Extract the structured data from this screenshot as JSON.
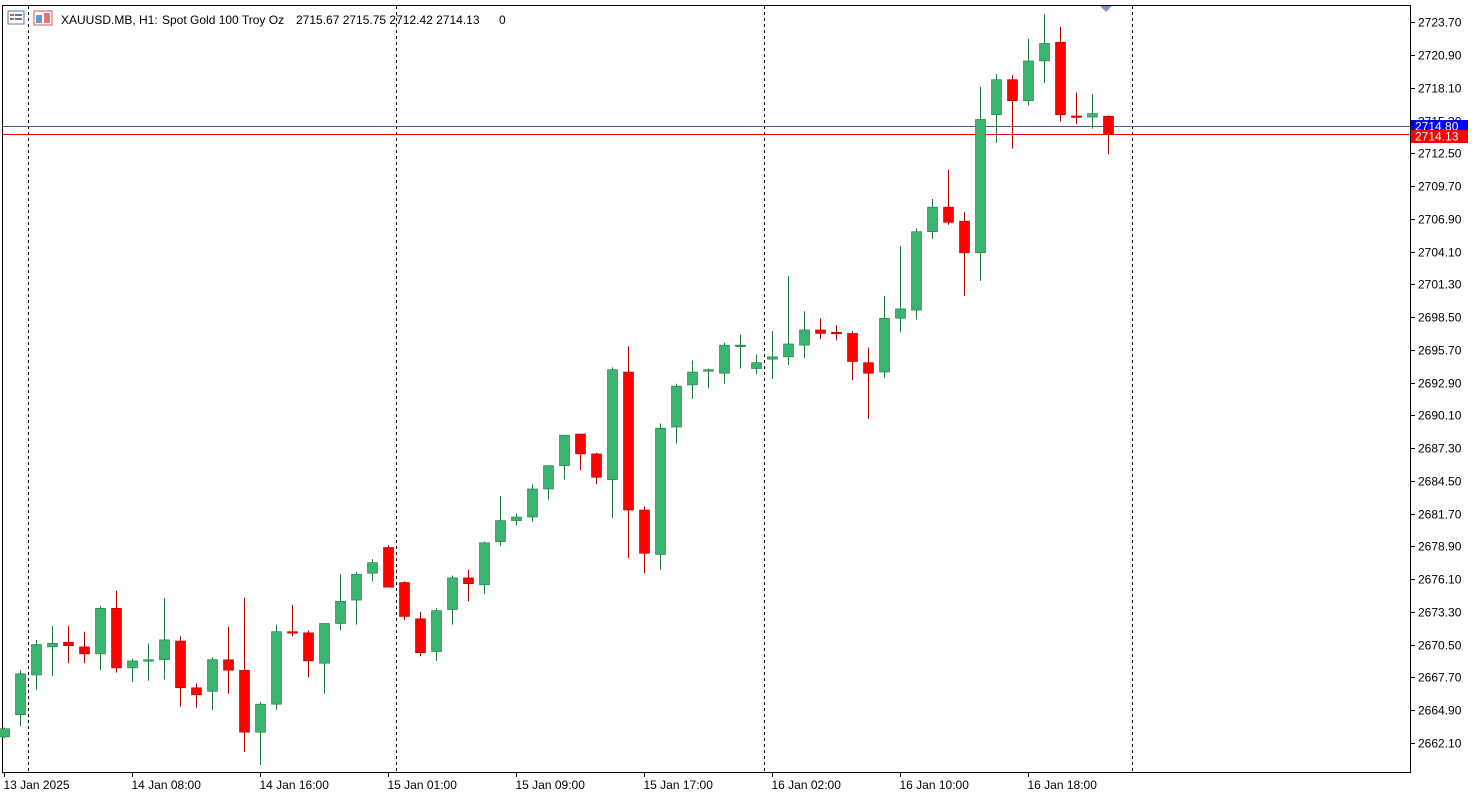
{
  "header": {
    "symbol": "XAUUSD.MB, H1:",
    "description": "Spot Gold 100 Troy Oz",
    "ohlc": "2715.67 2715.75 2712.42 2714.13",
    "volume": "0"
  },
  "colors": {
    "bull": "#3cb371",
    "bear": "#ff0000",
    "wick_bull": "#1e7b3a",
    "wick_bear": "#b00000",
    "grid": "#000000",
    "bid_line": "#1c1cff",
    "ask_line": "#ff0000",
    "bid_tag": "#0000ff",
    "ask_tag": "#ff0000"
  },
  "icons": [
    "chart-list-icon",
    "chart-window-icon"
  ],
  "chart_data": {
    "type": "candlestick",
    "y_ticks": [
      "2723.70",
      "2720.90",
      "2718.10",
      "2715.30",
      "2712.50",
      "2709.70",
      "2706.90",
      "2704.10",
      "2701.30",
      "2698.50",
      "2695.70",
      "2692.90",
      "2690.10",
      "2687.30",
      "2684.50",
      "2681.70",
      "2678.90",
      "2676.10",
      "2673.30",
      "2670.50",
      "2667.70",
      "2664.90",
      "2662.10"
    ],
    "ylim": [
      2659.6,
      2725.1
    ],
    "x_labels": [
      {
        "label": "13 Jan 2025",
        "index": 0
      },
      {
        "label": "14 Jan 08:00",
        "index": 8
      },
      {
        "label": "14 Jan 16:00",
        "index": 16
      },
      {
        "label": "15 Jan 01:00",
        "index": 24
      },
      {
        "label": "15 Jan 09:00",
        "index": 32
      },
      {
        "label": "15 Jan 17:00",
        "index": 40
      },
      {
        "label": "16 Jan 02:00",
        "index": 48
      },
      {
        "label": "16 Jan 10:00",
        "index": 56
      },
      {
        "label": "16 Jan 18:00",
        "index": 64
      }
    ],
    "separators": [
      1,
      24,
      47,
      70
    ],
    "bid_price": 2714.8,
    "bid_label": "2714.80",
    "ask_price": 2714.13,
    "ask_label": "2714.13",
    "candles": [
      [
        2662.6,
        2663.4,
        2662.5,
        2663.3
      ],
      [
        2664.5,
        2668.3,
        2663.5,
        2668.0
      ],
      [
        2667.9,
        2670.9,
        2666.6,
        2670.5
      ],
      [
        2670.3,
        2672.1,
        2667.8,
        2670.6
      ],
      [
        2670.7,
        2672.1,
        2668.9,
        2670.4
      ],
      [
        2670.3,
        2671.6,
        2668.9,
        2669.7
      ],
      [
        2669.7,
        2673.8,
        2668.3,
        2673.6
      ],
      [
        2673.6,
        2675.1,
        2668.1,
        2668.5
      ],
      [
        2668.5,
        2669.3,
        2667.3,
        2669.1
      ],
      [
        2669.1,
        2670.6,
        2667.4,
        2669.2
      ],
      [
        2669.2,
        2674.5,
        2667.5,
        2670.9
      ],
      [
        2670.8,
        2671.2,
        2665.2,
        2666.8
      ],
      [
        2666.8,
        2667.2,
        2665.1,
        2666.2
      ],
      [
        2666.5,
        2669.4,
        2664.9,
        2669.2
      ],
      [
        2669.2,
        2672.0,
        2666.3,
        2668.3
      ],
      [
        2668.3,
        2674.5,
        2661.3,
        2663.0
      ],
      [
        2663.0,
        2665.6,
        2660.2,
        2665.4
      ],
      [
        2665.4,
        2672.2,
        2664.9,
        2671.6
      ],
      [
        2671.6,
        2673.9,
        2671.2,
        2671.5
      ],
      [
        2671.5,
        2671.7,
        2667.7,
        2669.1
      ],
      [
        2668.9,
        2672.2,
        2666.3,
        2672.3
      ],
      [
        2672.3,
        2676.5,
        2671.7,
        2674.2
      ],
      [
        2674.3,
        2676.7,
        2672.2,
        2676.5
      ],
      [
        2676.6,
        2677.8,
        2675.9,
        2677.5
      ],
      [
        2678.8,
        2679.0,
        2675.4,
        2675.4
      ],
      [
        2675.8,
        2675.9,
        2672.6,
        2672.9
      ],
      [
        2672.7,
        2673.3,
        2669.5,
        2669.8
      ],
      [
        2669.9,
        2673.6,
        2669.1,
        2673.4
      ],
      [
        2673.5,
        2676.4,
        2672.2,
        2676.2
      ],
      [
        2676.2,
        2676.9,
        2674.2,
        2675.7
      ],
      [
        2675.6,
        2679.3,
        2674.8,
        2679.2
      ],
      [
        2679.3,
        2683.2,
        2678.9,
        2681.1
      ],
      [
        2681.1,
        2681.7,
        2680.7,
        2681.4
      ],
      [
        2681.4,
        2684.2,
        2681.0,
        2683.8
      ],
      [
        2683.8,
        2685.7,
        2682.9,
        2685.8
      ],
      [
        2685.8,
        2688.4,
        2684.6,
        2688.4
      ],
      [
        2688.5,
        2688.4,
        2685.4,
        2686.8
      ],
      [
        2686.8,
        2686.9,
        2684.2,
        2684.8
      ],
      [
        2684.6,
        2694.2,
        2681.3,
        2694.0
      ],
      [
        2693.8,
        2696.0,
        2677.9,
        2682.0
      ],
      [
        2682.0,
        2682.3,
        2676.6,
        2678.3
      ],
      [
        2678.2,
        2689.4,
        2676.9,
        2689.0
      ],
      [
        2689.1,
        2692.8,
        2687.7,
        2692.6
      ],
      [
        2692.7,
        2694.8,
        2691.5,
        2693.8
      ],
      [
        2693.9,
        2694.1,
        2692.4,
        2694.0
      ],
      [
        2693.7,
        2696.3,
        2692.8,
        2696.1
      ],
      [
        2696.0,
        2697.0,
        2694.1,
        2696.1
      ],
      [
        2694.1,
        2695.3,
        2693.6,
        2694.6
      ],
      [
        2694.9,
        2697.3,
        2693.2,
        2695.1
      ],
      [
        2695.1,
        2702.0,
        2694.4,
        2696.2
      ],
      [
        2696.1,
        2699.0,
        2695.0,
        2697.4
      ],
      [
        2697.4,
        2698.4,
        2696.6,
        2697.1
      ],
      [
        2697.2,
        2697.8,
        2696.5,
        2697.1
      ],
      [
        2697.1,
        2697.3,
        2693.1,
        2694.7
      ],
      [
        2694.6,
        2695.9,
        2689.8,
        2693.7
      ],
      [
        2693.8,
        2700.3,
        2693.3,
        2698.4
      ],
      [
        2698.4,
        2704.6,
        2697.2,
        2699.2
      ],
      [
        2699.1,
        2706.1,
        2698.3,
        2705.8
      ],
      [
        2705.8,
        2708.6,
        2705.2,
        2707.9
      ],
      [
        2707.9,
        2711.1,
        2706.4,
        2706.6
      ],
      [
        2706.7,
        2707.5,
        2700.3,
        2704.0
      ],
      [
        2704.0,
        2718.2,
        2701.6,
        2715.4
      ],
      [
        2715.8,
        2719.3,
        2713.4,
        2718.8
      ],
      [
        2718.8,
        2719.2,
        2712.9,
        2717.0
      ],
      [
        2717.0,
        2722.3,
        2716.6,
        2720.4
      ],
      [
        2720.4,
        2724.4,
        2718.5,
        2721.9
      ],
      [
        2722.0,
        2723.3,
        2715.2,
        2715.8
      ],
      [
        2715.7,
        2717.7,
        2715.0,
        2715.6
      ],
      [
        2715.6,
        2717.6,
        2714.6,
        2715.9
      ],
      [
        2715.67,
        2715.75,
        2712.42,
        2714.13
      ]
    ]
  }
}
